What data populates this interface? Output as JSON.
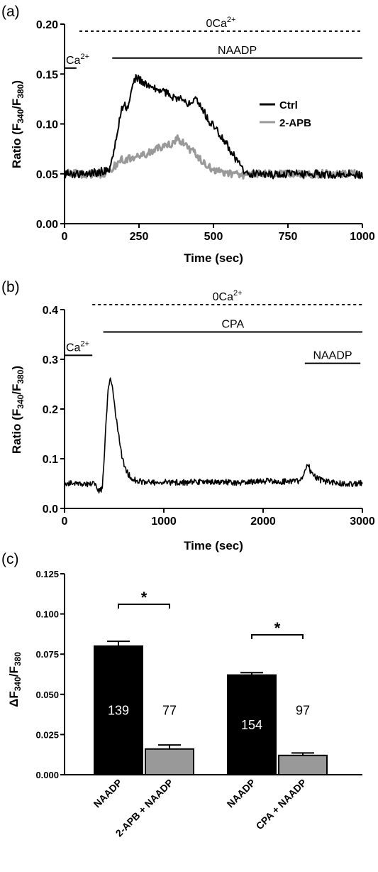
{
  "panels": {
    "a": {
      "label": "(a)",
      "chart_data": {
        "type": "line",
        "xlabel": "Time (sec)",
        "ylabel_main": "Ratio (F",
        "ylabel_sub1": "340",
        "ylabel_mid": "/F",
        "ylabel_sub2": "380",
        "ylabel_end": ")",
        "xlim": [
          0,
          1000
        ],
        "ylim": [
          0,
          0.2
        ],
        "xticks": [
          0,
          250,
          500,
          750,
          1000
        ],
        "xtick_labels": [
          "0",
          "250",
          "500",
          "750",
          "1000"
        ],
        "yticks": [
          0,
          0.05,
          0.1,
          0.15,
          0.2
        ],
        "ytick_labels": [
          "0.00",
          "0.05",
          "0.10",
          "0.15",
          "0.20"
        ],
        "legend_position": "right",
        "series": [
          {
            "name": "Ctrl",
            "color": "#000000",
            "x": [
              0,
              40,
              80,
              120,
              150,
              165,
              180,
              190,
              200,
              210,
              220,
              230,
              240,
              250,
              270,
              300,
              330,
              360,
              390,
              410,
              430,
              440,
              460,
              480,
              500,
              530,
              560,
              590,
              610,
              650,
              700,
              750,
              800,
              850,
              900,
              950,
              1000
            ],
            "y": [
              0.05,
              0.05,
              0.05,
              0.052,
              0.055,
              0.07,
              0.095,
              0.115,
              0.12,
              0.115,
              0.125,
              0.14,
              0.147,
              0.145,
              0.14,
              0.135,
              0.133,
              0.128,
              0.125,
              0.12,
              0.125,
              0.127,
              0.118,
              0.105,
              0.098,
              0.087,
              0.072,
              0.058,
              0.05,
              0.05,
              0.049,
              0.05,
              0.05,
              0.05,
              0.049,
              0.05,
              0.049
            ]
          },
          {
            "name": "2-APB",
            "color": "#999999",
            "x": [
              0,
              40,
              80,
              120,
              150,
              170,
              190,
              220,
              250,
              280,
              310,
              340,
              370,
              380,
              400,
              420,
              440,
              460,
              480,
              520,
              560,
              600,
              650,
              700,
              750,
              800,
              850,
              900,
              950,
              1000
            ],
            "y": [
              0.05,
              0.05,
              0.05,
              0.05,
              0.052,
              0.058,
              0.064,
              0.065,
              0.068,
              0.07,
              0.075,
              0.078,
              0.082,
              0.085,
              0.08,
              0.075,
              0.07,
              0.062,
              0.057,
              0.052,
              0.05,
              0.049,
              0.05,
              0.05,
              0.05,
              0.049,
              0.05,
              0.05,
              0.05,
              0.05
            ]
          }
        ],
        "bars": [
          {
            "label": "0Ca2+",
            "style": "dashed",
            "x_start": 50,
            "x_end": 1000,
            "y": 0.193
          },
          {
            "label": "NAADP",
            "style": "solid",
            "x_start": 160,
            "x_end": 1000,
            "y": 0.166
          },
          {
            "label": "Ca2+",
            "style": "solid",
            "x_start": 0,
            "x_end": 40,
            "y": 0.156
          }
        ]
      }
    },
    "b": {
      "label": "(b)",
      "chart_data": {
        "type": "line",
        "xlabel": "Time (sec)",
        "ylabel_main": "Ratio (F",
        "ylabel_sub1": "340",
        "ylabel_mid": "/F",
        "ylabel_sub2": "380",
        "ylabel_end": ")",
        "xlim": [
          0,
          3000
        ],
        "ylim": [
          0,
          0.4
        ],
        "xticks": [
          0,
          1000,
          2000,
          3000
        ],
        "xtick_labels": [
          "0",
          "1000",
          "2000",
          "3000"
        ],
        "yticks": [
          0,
          0.1,
          0.2,
          0.3,
          0.4
        ],
        "ytick_labels": [
          "0.0",
          "0.1",
          "0.2",
          "0.3",
          "0.4"
        ],
        "series": [
          {
            "name": "",
            "color": "#000000",
            "x": [
              0,
              100,
              200,
              300,
              350,
              380,
              400,
              420,
              440,
              460,
              480,
              500,
              520,
              550,
              580,
              620,
              660,
              700,
              800,
              1000,
              1200,
              1400,
              1600,
              1800,
              2000,
              2200,
              2350,
              2400,
              2420,
              2440,
              2460,
              2480,
              2500,
              2550,
              2600,
              2700,
              2800,
              2900,
              3000
            ],
            "y": [
              0.05,
              0.052,
              0.05,
              0.048,
              0.035,
              0.04,
              0.1,
              0.18,
              0.24,
              0.265,
              0.25,
              0.22,
              0.18,
              0.14,
              0.1,
              0.075,
              0.065,
              0.058,
              0.052,
              0.053,
              0.052,
              0.054,
              0.053,
              0.052,
              0.055,
              0.054,
              0.055,
              0.06,
              0.075,
              0.085,
              0.085,
              0.072,
              0.068,
              0.06,
              0.055,
              0.052,
              0.05,
              0.05,
              0.052
            ]
          }
        ],
        "bars": [
          {
            "label": "0Ca2+",
            "style": "dashed",
            "x_start": 280,
            "x_end": 3000,
            "y": 0.41
          },
          {
            "label": "CPA",
            "style": "solid",
            "x_start": 390,
            "x_end": 3000,
            "y": 0.355
          },
          {
            "label": "Ca2+",
            "style": "solid",
            "x_start": 0,
            "x_end": 280,
            "y": 0.308
          },
          {
            "label": "NAADP",
            "style": "solid",
            "x_start": 2420,
            "x_end": 2980,
            "y": 0.292
          }
        ]
      }
    },
    "c": {
      "label": "(c)",
      "chart_data": {
        "type": "bar",
        "ylabel_delta": "ΔF",
        "ylabel_sub1": "340",
        "ylabel_mid": "/F",
        "ylabel_sub2": "380",
        "ylim": [
          0,
          0.125
        ],
        "yticks": [
          0,
          0.025,
          0.05,
          0.075,
          0.1,
          0.125
        ],
        "ytick_labels": [
          "0.000",
          "0.025",
          "0.050",
          "0.075",
          "0.100",
          "0.125"
        ],
        "categories": [
          "NAADP",
          "2-APB + NAADP",
          "NAADP",
          "CPA + NAADP"
        ],
        "values": [
          0.08,
          0.016,
          0.062,
          0.012
        ],
        "errors": [
          0.003,
          0.0025,
          0.0015,
          0.0015
        ],
        "counts": [
          "139",
          "77",
          "154",
          "97"
        ],
        "colors": [
          "#000000",
          "#999999",
          "#000000",
          "#999999"
        ],
        "significance": [
          {
            "pair": [
              0,
              1
            ],
            "label": "*",
            "y": 0.106
          },
          {
            "pair": [
              2,
              3
            ],
            "label": "*",
            "y": 0.087
          }
        ]
      }
    }
  }
}
